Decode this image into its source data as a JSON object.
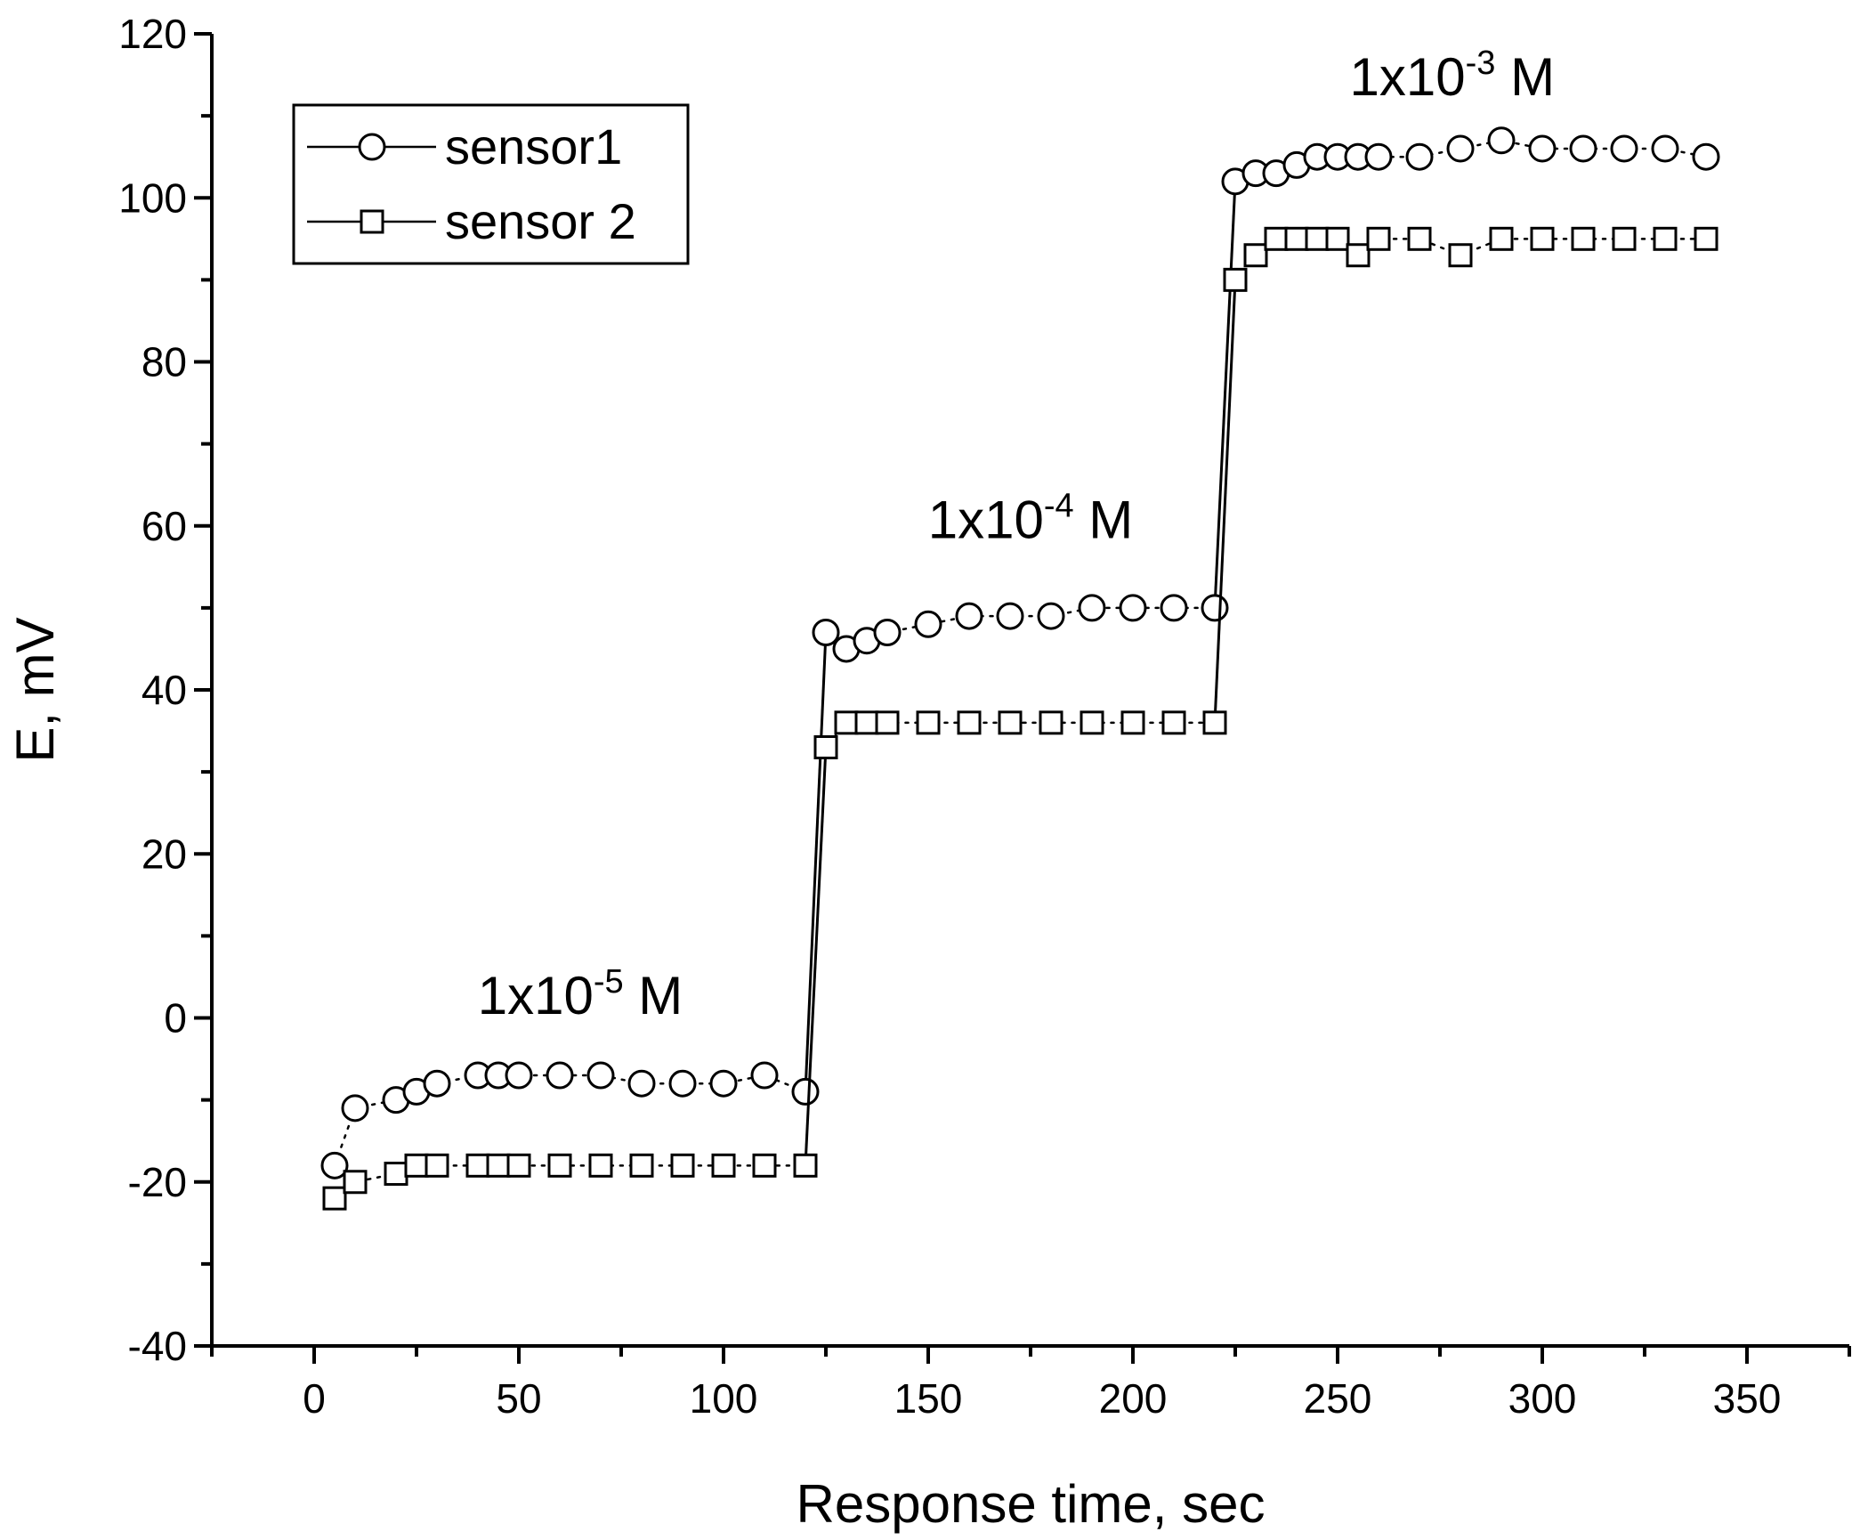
{
  "chart_data": {
    "type": "line",
    "xlabel": "Response time, sec",
    "ylabel": "E, mV",
    "xlim": [
      -25,
      375
    ],
    "ylim": [
      -40,
      120
    ],
    "xticks": [
      0,
      50,
      100,
      150,
      200,
      250,
      300,
      350
    ],
    "yticks": [
      -40,
      -20,
      0,
      20,
      40,
      60,
      80,
      100,
      120
    ],
    "grid": false,
    "legend_position": "top-left",
    "series": [
      {
        "name": "sensor1",
        "marker": "circle",
        "x": [
          5,
          10,
          20,
          25,
          30,
          40,
          45,
          50,
          60,
          70,
          80,
          90,
          100,
          110,
          120,
          125,
          130,
          135,
          140,
          150,
          160,
          170,
          180,
          190,
          200,
          210,
          220,
          225,
          230,
          235,
          240,
          245,
          250,
          255,
          260,
          270,
          280,
          290,
          300,
          310,
          320,
          330,
          340
        ],
        "y": [
          -18,
          -11,
          -10,
          -9,
          -8,
          -7,
          -7,
          -7,
          -7,
          -7,
          -8,
          -8,
          -8,
          -7,
          -9,
          47,
          45,
          46,
          47,
          48,
          49,
          49,
          49,
          50,
          50,
          50,
          50,
          102,
          103,
          103,
          104,
          105,
          105,
          105,
          105,
          105,
          106,
          107,
          106,
          106,
          106,
          106,
          105
        ]
      },
      {
        "name": "sensor 2",
        "marker": "square",
        "x": [
          5,
          10,
          20,
          25,
          30,
          40,
          45,
          50,
          60,
          70,
          80,
          90,
          100,
          110,
          120,
          125,
          130,
          135,
          140,
          150,
          160,
          170,
          180,
          190,
          200,
          210,
          220,
          225,
          230,
          235,
          240,
          245,
          250,
          255,
          260,
          270,
          280,
          290,
          300,
          310,
          320,
          330,
          340
        ],
        "y": [
          -22,
          -20,
          -19,
          -18,
          -18,
          -18,
          -18,
          -18,
          -18,
          -18,
          -18,
          -18,
          -18,
          -18,
          -18,
          33,
          36,
          36,
          36,
          36,
          36,
          36,
          36,
          36,
          36,
          36,
          36,
          90,
          93,
          95,
          95,
          95,
          95,
          93,
          95,
          95,
          93,
          95,
          95,
          95,
          95,
          95,
          95
        ]
      }
    ],
    "annotations": [
      {
        "base": "1x10",
        "exp": "-5",
        "unit": " M",
        "x": 65,
        "y": 0.5
      },
      {
        "base": "1x10",
        "exp": "-4",
        "unit": " M",
        "x": 175,
        "y": 58.5
      },
      {
        "base": "1x10",
        "exp": "-3",
        "unit": " M",
        "x": 278,
        "y": 112.5
      }
    ]
  }
}
